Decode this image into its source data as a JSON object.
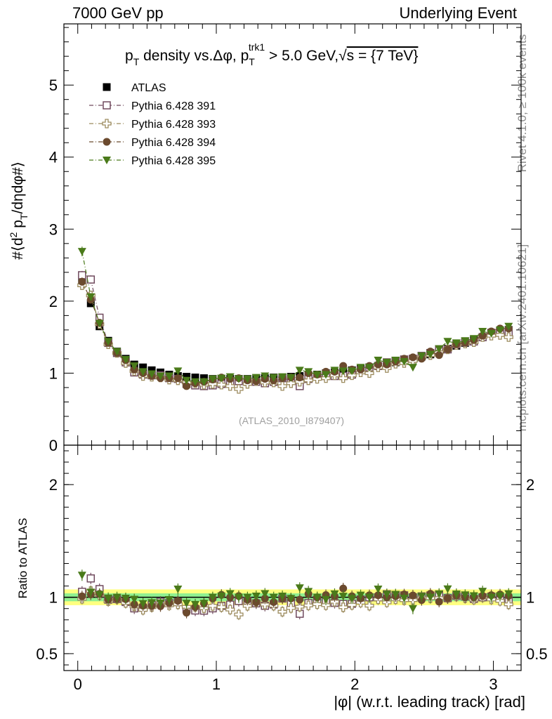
{
  "header": {
    "left": "7000 GeV pp",
    "right": "Underlying Event"
  },
  "side_labels": {
    "rivet": "Rivet 4.1.0, ≥ 100k events",
    "mcplots": "mcplots.cern.ch [arXiv:2401.10621]"
  },
  "colors": {
    "atlas": "#000000",
    "p391": "#704a5e",
    "p393": "#9c8b5e",
    "p394": "#6b4a2e",
    "p395": "#4a7a1a",
    "band_inner": "#90f090",
    "band_outer": "#ffff80"
  },
  "chart_data": {
    "type": "scatter",
    "title": "pT density vs.Δφ, pT trk1 > 5.0 GeV, √s = {7 TeV}",
    "title_parts": {
      "p": "p",
      "T": "T",
      "mid": " density vs.Δφ, p",
      "trk1": "trk1",
      "rest": " > 5.0 GeV,",
      "sqrt": "√",
      "s": "s = {7 TeV}"
    },
    "ylabel": "#⟨d² pT/dηdφ#⟩",
    "ylabel_parts": {
      "a": "#⟨d",
      "sup2": "2",
      "b": " p",
      "sub": "T",
      "c": "/dηdφ#⟩"
    },
    "xlabel": "|φ| (w.r.t. leading track) [rad]",
    "ratio_ylabel": "Ratio to ATLAS",
    "watermark": "(ATLAS_2010_I879407)",
    "xlim": [
      -0.1,
      3.2
    ],
    "ylim": [
      0,
      5.85
    ],
    "ratio_ylim": [
      0.35,
      2.35
    ],
    "x_ticks": [
      "0",
      "1",
      "2",
      "3"
    ],
    "y_ticks": [
      "0",
      "1",
      "2",
      "3",
      "4",
      "5"
    ],
    "ratio_ticks": [
      "0.5",
      "1",
      "2"
    ],
    "legend_placement": "top-left",
    "x": [
      0.031,
      0.094,
      0.157,
      0.22,
      0.283,
      0.346,
      0.408,
      0.471,
      0.534,
      0.597,
      0.66,
      0.723,
      0.785,
      0.848,
      0.911,
      0.974,
      1.037,
      1.1,
      1.162,
      1.225,
      1.288,
      1.351,
      1.414,
      1.477,
      1.539,
      1.602,
      1.665,
      1.728,
      1.791,
      1.854,
      1.916,
      1.979,
      2.042,
      2.105,
      2.168,
      2.231,
      2.294,
      2.356,
      2.419,
      2.482,
      2.545,
      2.608,
      2.67,
      2.733,
      2.796,
      2.859,
      2.922,
      2.985,
      3.048,
      3.11
    ],
    "series": [
      {
        "name": "ATLAS",
        "marker": "square-filled",
        "values": [
          2.25,
          1.97,
          1.65,
          1.45,
          1.3,
          1.2,
          1.12,
          1.08,
          1.04,
          1.01,
          0.98,
          0.96,
          0.95,
          0.94,
          0.93,
          0.92,
          0.92,
          0.92,
          0.92,
          0.92,
          0.93,
          0.93,
          0.94,
          0.94,
          0.95,
          0.96,
          0.97,
          0.98,
          1.0,
          1.01,
          1.02,
          1.04,
          1.06,
          1.08,
          1.1,
          1.12,
          1.15,
          1.17,
          1.2,
          1.23,
          1.26,
          1.3,
          1.34,
          1.38,
          1.42,
          1.46,
          1.5,
          1.55,
          1.58,
          1.6
        ]
      },
      {
        "name": "Pythia 6.428 391",
        "marker": "square-open",
        "values": [
          2.36,
          2.3,
          1.77,
          1.42,
          1.28,
          1.15,
          1.01,
          0.98,
          0.97,
          0.97,
          0.93,
          0.92,
          0.85,
          0.83,
          0.82,
          0.83,
          0.85,
          0.86,
          0.89,
          0.89,
          0.88,
          0.86,
          0.88,
          0.93,
          0.9,
          0.82,
          0.92,
          0.96,
          0.96,
          0.96,
          0.96,
          0.98,
          1.04,
          1.08,
          1.1,
          1.15,
          1.17,
          1.19,
          1.2,
          1.24,
          1.28,
          1.33,
          1.33,
          1.4,
          1.43,
          1.44,
          1.5,
          1.56,
          1.58,
          1.55
        ]
      },
      {
        "name": "Pythia 6.428 393",
        "marker": "cross-open",
        "values": [
          2.22,
          2.08,
          1.68,
          1.4,
          1.28,
          1.14,
          1.03,
          0.96,
          0.95,
          0.94,
          0.91,
          0.9,
          0.87,
          0.86,
          0.84,
          0.85,
          0.84,
          0.82,
          0.78,
          0.85,
          0.89,
          0.87,
          0.87,
          0.82,
          0.86,
          0.88,
          0.9,
          0.92,
          0.93,
          0.97,
          0.93,
          0.97,
          1.01,
          1.0,
          1.08,
          1.07,
          1.13,
          1.14,
          1.17,
          1.22,
          1.25,
          1.29,
          1.33,
          1.39,
          1.41,
          1.43,
          1.5,
          1.52,
          1.53,
          1.5
        ]
      },
      {
        "name": "Pythia 6.428 394",
        "marker": "circle-filled",
        "values": [
          2.27,
          2.02,
          1.7,
          1.42,
          1.28,
          1.18,
          1.05,
          1.0,
          0.96,
          0.93,
          0.93,
          0.93,
          0.82,
          0.86,
          0.88,
          0.91,
          0.94,
          0.92,
          0.93,
          0.9,
          0.89,
          0.92,
          0.9,
          0.93,
          0.94,
          0.94,
          1.0,
          0.98,
          1.02,
          1.02,
          1.1,
          1.05,
          1.05,
          1.1,
          1.12,
          1.12,
          1.16,
          1.2,
          1.22,
          1.2,
          1.3,
          1.25,
          1.33,
          1.4,
          1.42,
          1.46,
          1.52,
          1.58,
          1.62,
          1.62
        ]
      },
      {
        "name": "Pythia 6.428 395",
        "marker": "triangle-down-filled",
        "values": [
          2.69,
          2.06,
          1.69,
          1.44,
          1.3,
          1.19,
          1.1,
          1.02,
          0.99,
          0.96,
          0.96,
          1.03,
          0.9,
          0.88,
          0.88,
          0.92,
          0.93,
          0.95,
          0.92,
          0.92,
          0.94,
          0.96,
          0.94,
          0.95,
          0.94,
          1.04,
          1.02,
          0.98,
          0.98,
          1.04,
          1.03,
          1.03,
          1.08,
          1.08,
          1.18,
          1.15,
          1.18,
          1.16,
          1.08,
          1.24,
          1.26,
          1.34,
          1.44,
          1.42,
          1.45,
          1.48,
          1.58,
          1.55,
          1.6,
          1.65
        ]
      }
    ]
  }
}
